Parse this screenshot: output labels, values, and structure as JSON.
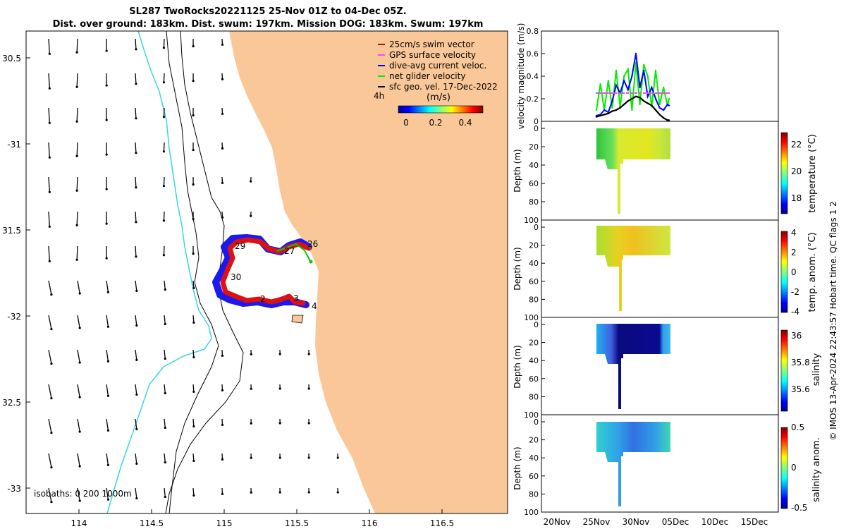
{
  "title": {
    "line1": "SL287 TwoRocks20221125 25-Nov 01Z to 04-Dec 05Z.",
    "line2": "Dist. over ground: 183km. Dist. swum: 197km. Mission DOG: 183km. Swum: 197km"
  },
  "map": {
    "lon_ticks": [
      "114",
      "114.5",
      "115",
      "115.5",
      "116",
      "116.5"
    ],
    "lat_ticks": [
      "30.5",
      "-31",
      "31.5",
      "-32",
      "32.5",
      "-33"
    ],
    "legend": [
      {
        "label": "25cm/s swim vector",
        "color": "#cc0000"
      },
      {
        "label": "GPS surface velocity",
        "color": "#ff44ff"
      },
      {
        "label": "dive-avg current veloc.",
        "color": "#0000ff"
      },
      {
        "label": "net glider velocity",
        "color": "#00ee00"
      },
      {
        "label": "sfc geo. vel. 17-Dec-2022",
        "color": "#000000"
      }
    ],
    "colorbar_title": "(m/s)",
    "colorbar_ticks": [
      "0",
      "0.2",
      "0.4"
    ],
    "time_label": "4h",
    "isobaths_label": "isobaths: 0   200  1000m",
    "day_labels": [
      "26",
      "27",
      "29",
      "30",
      "2",
      "3",
      "4"
    ],
    "land_color": "#fac898",
    "coast_color": "#35d7e6"
  },
  "chart_data": [
    {
      "type": "line",
      "ylabel": "velocity magnitude (m/s)",
      "ylim": [
        0,
        0.8
      ],
      "yticks": [
        "0",
        "0.2",
        "0.4",
        "0.6",
        "0.8"
      ],
      "x_days": [
        25.0,
        25.5,
        26.0,
        26.5,
        27.0,
        27.5,
        28.0,
        28.5,
        29.0,
        29.5,
        30.0,
        30.5,
        31.0,
        31.5,
        32.0,
        32.5,
        33.0,
        33.5,
        34.0,
        34.2
      ],
      "series": [
        {
          "name": "net glider velocity",
          "color": "#00ee00",
          "values": [
            0.1,
            0.33,
            0.1,
            0.36,
            0.12,
            0.45,
            0.13,
            0.4,
            0.46,
            0.1,
            0.52,
            0.15,
            0.5,
            0.4,
            0.13,
            0.45,
            0.15,
            0.3,
            0.14,
            0.2
          ]
        },
        {
          "name": "dive-avg current veloc.",
          "color": "#0000ff",
          "values": [
            0.05,
            0.06,
            0.1,
            0.08,
            0.18,
            0.32,
            0.25,
            0.36,
            0.28,
            0.4,
            0.6,
            0.3,
            0.45,
            0.22,
            0.3,
            0.2,
            0.12,
            0.1,
            0.15,
            0.14
          ]
        },
        {
          "name": "GPS surface velocity",
          "color": "#dd55dd",
          "values": [
            0.25,
            0.25,
            0.25,
            0.25,
            0.25,
            0.25,
            0.25,
            0.25,
            0.25,
            0.25,
            0.25,
            0.25,
            0.25,
            0.25,
            0.25,
            0.25,
            0.25,
            0.25,
            0.25,
            0.25
          ]
        },
        {
          "name": "sfc geo. vel. 17-Dec-2022",
          "color": "#000000",
          "values": [
            0.04,
            0.05,
            0.06,
            0.07,
            0.09,
            0.1,
            0.12,
            0.15,
            0.18,
            0.2,
            0.22,
            0.21,
            0.18,
            0.16,
            0.14,
            0.1,
            0.06,
            0.03,
            0.01,
            0.01
          ]
        }
      ]
    },
    {
      "type": "heatmap",
      "ylabel": "Depth (m)",
      "yticks": [
        "0",
        "20",
        "40",
        "60",
        "80",
        "100"
      ],
      "cbar_label": "temperature (°C)",
      "cbar_ticks": [
        "22",
        "20",
        "18"
      ]
    },
    {
      "type": "heatmap",
      "ylabel": "Depth (m)",
      "yticks": [
        "0",
        "20",
        "40",
        "60",
        "80",
        "100"
      ],
      "cbar_label": "temp. anom. (°C)",
      "cbar_ticks": [
        "4",
        "2",
        "0",
        "-2",
        "-4"
      ]
    },
    {
      "type": "heatmap",
      "ylabel": "Depth (m)",
      "yticks": [
        "0",
        "20",
        "40",
        "60",
        "80",
        "100"
      ],
      "cbar_label": "salinity",
      "cbar_ticks": [
        "36",
        "35.8",
        "35.6"
      ]
    },
    {
      "type": "heatmap",
      "ylabel": "Depth (m)",
      "yticks": [
        "0",
        "20",
        "40",
        "60",
        "80",
        "100"
      ],
      "cbar_label": "salinity anom.",
      "cbar_ticks": [
        "0.5",
        "0",
        "-0.5"
      ]
    }
  ],
  "time_axis": {
    "ticks": [
      "20Nov",
      "25Nov",
      "30Nov",
      "05Dec",
      "10Dec",
      "15Dec"
    ]
  },
  "footer": "© IMOS 13-Apr-2024 22:43:57 Hobart time. QC flags 1  2"
}
